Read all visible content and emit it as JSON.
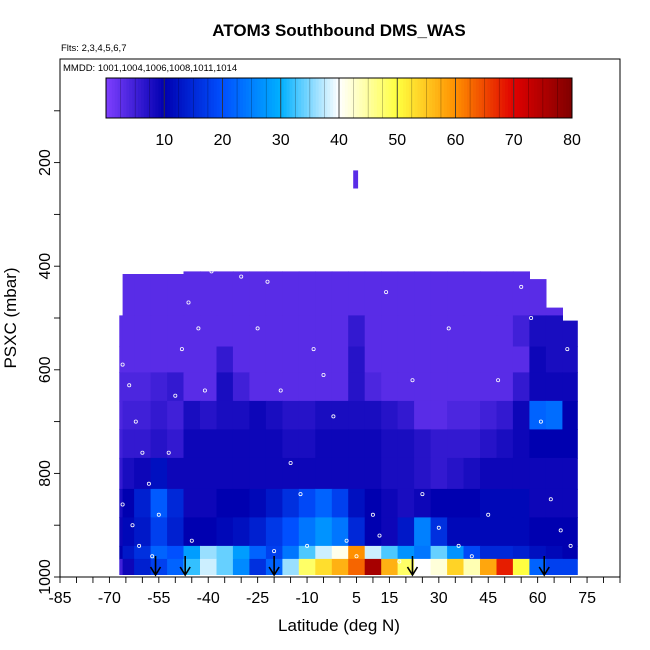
{
  "chart_data": {
    "type": "heatmap",
    "title": "ATOM3 Southbound DMS_WAS",
    "flights_note": "Flts: 2,3,4,5,6,7",
    "mmdd_note": "MMDD: 1001,1004,1006,1008,1011,1014",
    "xlabel": "Latitude (deg N)",
    "ylabel": "PSXC (mbar)",
    "xlim": [
      -85,
      85
    ],
    "ylim": [
      1000,
      0
    ],
    "x_tick_labels": [
      "-85",
      "-70",
      "-55",
      "-40",
      "-25",
      "-10",
      "5",
      "15",
      "30",
      "45",
      "60",
      "75"
    ],
    "x_tick_values": [
      -85,
      -70,
      -55,
      -40,
      -25,
      -10,
      5,
      15,
      30,
      45,
      60,
      75
    ],
    "y_tick_labels": [
      "200",
      "400",
      "600",
      "800",
      "1000"
    ],
    "y_tick_values": [
      200,
      400,
      600,
      800,
      1000
    ],
    "colorbar": {
      "range": [
        0,
        80
      ],
      "tick_labels": [
        "10",
        "20",
        "30",
        "40",
        "50",
        "60",
        "70",
        "80"
      ],
      "tick_values": [
        10,
        20,
        30,
        40,
        50,
        60,
        70,
        80
      ],
      "colors": [
        "#7f3fff",
        "#0000b0",
        "#0050ff",
        "#00b0ff",
        "#ffffff",
        "#ffff40",
        "#ff9000",
        "#e00000",
        "#800000"
      ]
    },
    "arrow_latitudes": [
      -56,
      -47,
      -20,
      22,
      62
    ],
    "envelope": [
      {
        "lat": -67,
        "p_top": 495,
        "p_bottom": 995
      },
      {
        "lat": -65,
        "p_top": 415,
        "p_bottom": 995
      },
      {
        "lat": -60,
        "p_top": 415,
        "p_bottom": 995
      },
      {
        "lat": -55,
        "p_top": 415,
        "p_bottom": 995
      },
      {
        "lat": -50,
        "p_top": 415,
        "p_bottom": 995
      },
      {
        "lat": -45,
        "p_top": 355,
        "p_bottom": 995
      },
      {
        "lat": -40,
        "p_top": 355,
        "p_bottom": 995
      },
      {
        "lat": -35,
        "p_top": 310,
        "p_bottom": 995
      },
      {
        "lat": -30,
        "p_top": 290,
        "p_bottom": 995
      },
      {
        "lat": -25,
        "p_top": 290,
        "p_bottom": 995
      },
      {
        "lat": -20,
        "p_top": 290,
        "p_bottom": 995
      },
      {
        "lat": -15,
        "p_top": 290,
        "p_bottom": 995
      },
      {
        "lat": -10,
        "p_top": 290,
        "p_bottom": 995
      },
      {
        "lat": -5,
        "p_top": 290,
        "p_bottom": 995
      },
      {
        "lat": 0,
        "p_top": 290,
        "p_bottom": 995
      },
      {
        "lat": 5,
        "p_top": 290,
        "p_bottom": 995
      },
      {
        "lat": 10,
        "p_top": 290,
        "p_bottom": 995
      },
      {
        "lat": 15,
        "p_top": 290,
        "p_bottom": 995
      },
      {
        "lat": 20,
        "p_top": 290,
        "p_bottom": 995
      },
      {
        "lat": 25,
        "p_top": 290,
        "p_bottom": 995
      },
      {
        "lat": 30,
        "p_top": 290,
        "p_bottom": 995
      },
      {
        "lat": 35,
        "p_top": 290,
        "p_bottom": 995
      },
      {
        "lat": 40,
        "p_top": 380,
        "p_bottom": 995
      },
      {
        "lat": 45,
        "p_top": 380,
        "p_bottom": 995
      },
      {
        "lat": 50,
        "p_top": 380,
        "p_bottom": 995
      },
      {
        "lat": 55,
        "p_top": 410,
        "p_bottom": 995
      },
      {
        "lat": 60,
        "p_top": 425,
        "p_bottom": 995
      },
      {
        "lat": 65,
        "p_top": 480,
        "p_bottom": 995
      },
      {
        "lat": 70,
        "p_top": 505,
        "p_bottom": 995
      }
    ],
    "layers": [
      {
        "p_top": 410,
        "p_bottom": 495,
        "values": [
          3,
          3,
          3,
          3,
          3,
          3,
          3,
          3,
          3,
          3,
          3,
          3,
          3,
          3,
          3,
          3,
          3,
          3,
          3,
          3,
          3,
          3,
          3,
          3,
          3,
          3,
          3,
          3,
          3
        ]
      },
      {
        "p_top": 495,
        "p_bottom": 555,
        "values": [
          3,
          3,
          3,
          3,
          3,
          3,
          3,
          3,
          3,
          3,
          3,
          3,
          3,
          3,
          3,
          6,
          3,
          3,
          3,
          3,
          3,
          3,
          3,
          3,
          3,
          5,
          8,
          8,
          8
        ]
      },
      {
        "p_top": 555,
        "p_bottom": 605,
        "values": [
          3,
          3,
          3,
          3,
          3,
          3,
          3,
          6,
          3,
          3,
          3,
          3,
          3,
          3,
          3,
          7,
          3,
          3,
          3,
          3,
          3,
          3,
          3,
          3,
          3,
          3,
          9,
          8,
          8
        ]
      },
      {
        "p_top": 605,
        "p_bottom": 660,
        "values": [
          4,
          4,
          4,
          5,
          6,
          3,
          3,
          8,
          5,
          3,
          3,
          3,
          3,
          3,
          3,
          7,
          4,
          3,
          3,
          3,
          3,
          3,
          3,
          3,
          3,
          6,
          9,
          9,
          9
        ]
      },
      {
        "p_top": 660,
        "p_bottom": 715,
        "values": [
          4,
          5,
          5,
          6,
          5,
          8,
          7,
          8,
          8,
          9,
          8,
          7,
          7,
          8,
          8,
          8,
          8,
          7,
          6,
          3,
          3,
          4,
          4,
          5,
          6,
          9,
          22,
          23,
          10
        ]
      },
      {
        "p_top": 715,
        "p_bottom": 770,
        "values": [
          5,
          6,
          6,
          7,
          6,
          9,
          9,
          9,
          9,
          9,
          9,
          8,
          8,
          9,
          9,
          9,
          9,
          8,
          8,
          7,
          6,
          6,
          6,
          7,
          8,
          9,
          10,
          10,
          10
        ]
      },
      {
        "p_top": 770,
        "p_bottom": 830,
        "values": [
          6,
          8,
          9,
          12,
          9,
          9,
          9,
          9,
          9,
          9,
          9,
          9,
          9,
          9,
          9,
          9,
          9,
          8,
          8,
          7,
          6,
          7,
          8,
          9,
          9,
          9,
          9,
          9,
          9
        ]
      },
      {
        "p_top": 830,
        "p_bottom": 885,
        "values": [
          8,
          10,
          14,
          21,
          15,
          9,
          9,
          10,
          10,
          11,
          13,
          16,
          19,
          22,
          18,
          12,
          10,
          9,
          8,
          9,
          10,
          10,
          10,
          11,
          11,
          11,
          9,
          9,
          9
        ]
      },
      {
        "p_top": 885,
        "p_bottom": 940,
        "values": [
          9,
          11,
          13,
          18,
          14,
          10,
          10,
          11,
          12,
          14,
          17,
          20,
          24,
          27,
          24,
          15,
          10,
          9,
          13,
          25,
          16,
          11,
          11,
          11,
          11,
          11,
          10,
          10,
          10
        ]
      },
      {
        "p_top": 940,
        "p_bottom": 965,
        "values": [
          10,
          13,
          16,
          22,
          20,
          28,
          36,
          34,
          28,
          22,
          18,
          24,
          33,
          38,
          41,
          60,
          38,
          33,
          27,
          24,
          34,
          27,
          19,
          15,
          15,
          14,
          12,
          11,
          10
        ]
      },
      {
        "p_top": 965,
        "p_bottom": 995,
        "values": [
          5,
          9,
          14,
          18,
          22,
          32,
          38,
          34,
          26,
          16,
          22,
          36,
          48,
          53,
          57,
          63,
          76,
          57,
          48,
          40,
          42,
          54,
          44,
          58,
          68,
          50,
          22,
          18,
          18
        ]
      }
    ],
    "sample_points": [
      {
        "lat": -66,
        "p": 590
      },
      {
        "lat": -64,
        "p": 630
      },
      {
        "lat": -62,
        "p": 700
      },
      {
        "lat": -60,
        "p": 760
      },
      {
        "lat": -58,
        "p": 820
      },
      {
        "lat": -66,
        "p": 860
      },
      {
        "lat": -63,
        "p": 900
      },
      {
        "lat": -61,
        "p": 940
      },
      {
        "lat": -57,
        "p": 960
      },
      {
        "lat": -55,
        "p": 880
      },
      {
        "lat": -52,
        "p": 760
      },
      {
        "lat": -50,
        "p": 650
      },
      {
        "lat": -48,
        "p": 560
      },
      {
        "lat": -46,
        "p": 470
      },
      {
        "lat": -43,
        "p": 520
      },
      {
        "lat": -41,
        "p": 640
      },
      {
        "lat": -39,
        "p": 410
      },
      {
        "lat": -37,
        "p": 340
      },
      {
        "lat": -35,
        "p": 300
      },
      {
        "lat": -30,
        "p": 420
      },
      {
        "lat": -27,
        "p": 370
      },
      {
        "lat": -25,
        "p": 520
      },
      {
        "lat": -22,
        "p": 430
      },
      {
        "lat": -18,
        "p": 640
      },
      {
        "lat": -15,
        "p": 780
      },
      {
        "lat": -12,
        "p": 840
      },
      {
        "lat": -8,
        "p": 560
      },
      {
        "lat": -5,
        "p": 610
      },
      {
        "lat": -2,
        "p": 690
      },
      {
        "lat": 2,
        "p": 930
      },
      {
        "lat": 5,
        "p": 960
      },
      {
        "lat": 8,
        "p": 320
      },
      {
        "lat": 10,
        "p": 880
      },
      {
        "lat": 14,
        "p": 450
      },
      {
        "lat": 18,
        "p": 970
      },
      {
        "lat": 22,
        "p": 620
      },
      {
        "lat": 25,
        "p": 840
      },
      {
        "lat": 30,
        "p": 905
      },
      {
        "lat": 33,
        "p": 520
      },
      {
        "lat": 36,
        "p": 940
      },
      {
        "lat": 40,
        "p": 960
      },
      {
        "lat": 42,
        "p": 360
      },
      {
        "lat": 45,
        "p": 880
      },
      {
        "lat": 48,
        "p": 620
      },
      {
        "lat": 52,
        "p": 400
      },
      {
        "lat": 55,
        "p": 440
      },
      {
        "lat": 58,
        "p": 500
      },
      {
        "lat": 61,
        "p": 700
      },
      {
        "lat": 64,
        "p": 850
      },
      {
        "lat": 67,
        "p": 910
      },
      {
        "lat": 70,
        "p": 940
      },
      {
        "lat": 69,
        "p": 560
      },
      {
        "lat": -45,
        "p": 930
      },
      {
        "lat": -20,
        "p": 950
      },
      {
        "lat": -10,
        "p": 940
      },
      {
        "lat": 12,
        "p": 920
      }
    ]
  }
}
